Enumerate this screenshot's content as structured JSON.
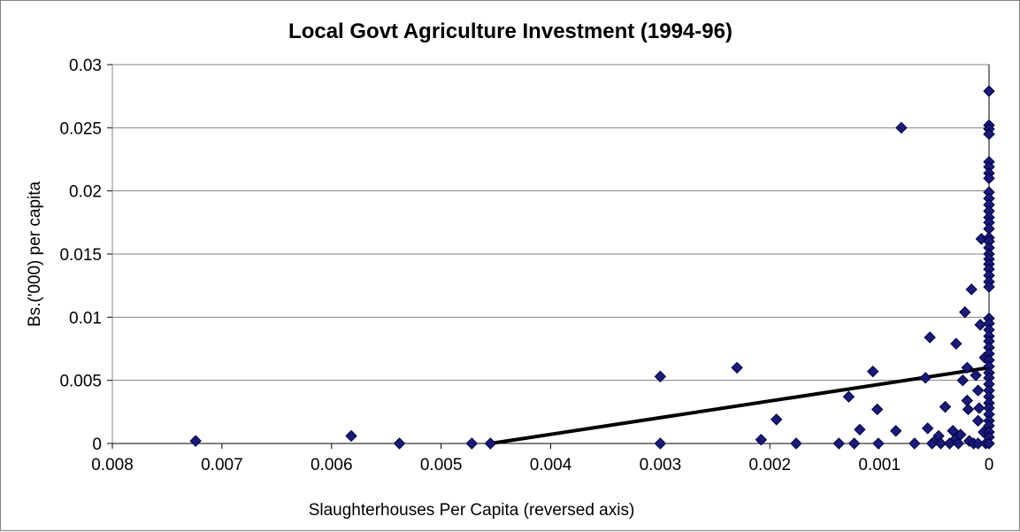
{
  "chart_data": {
    "type": "scatter",
    "title": "Local Govt Agriculture Investment (1994-96)",
    "xlabel": "Slaughterhouses Per Capita (reversed axis)",
    "ylabel": "Bs.('000) per capita",
    "x_reversed": true,
    "xlim": [
      0.008,
      0
    ],
    "ylim": [
      0,
      0.03
    ],
    "x_ticks": [
      "0.008",
      "0.007",
      "0.006",
      "0.005",
      "0.004",
      "0.003",
      "0.002",
      "0.001",
      "0"
    ],
    "y_ticks": [
      "0",
      "0.005",
      "0.01",
      "0.015",
      "0.02",
      "0.025",
      "0.03"
    ],
    "grid": "horizontal",
    "marker_color": "#1a1a7a",
    "trendline": {
      "x": [
        0.00455,
        0
      ],
      "y": [
        0,
        0.006
      ],
      "color": "#000000"
    },
    "points": [
      [
        0.00724,
        0.0002
      ],
      [
        0.00582,
        0.0006
      ],
      [
        0.00538,
        0.0
      ],
      [
        0.00472,
        0.0
      ],
      [
        0.00455,
        0.0
      ],
      [
        0.003,
        0.0053
      ],
      [
        0.003,
        0.0
      ],
      [
        0.0023,
        0.006
      ],
      [
        0.00208,
        0.0003
      ],
      [
        0.00194,
        0.0019
      ],
      [
        0.00176,
        0.0
      ],
      [
        0.00137,
        0.0
      ],
      [
        0.00128,
        0.0037
      ],
      [
        0.00123,
        0.0
      ],
      [
        0.00118,
        0.0011
      ],
      [
        0.00106,
        0.0057
      ],
      [
        0.00102,
        0.0027
      ],
      [
        0.00101,
        0.0
      ],
      [
        0.00085,
        0.001
      ],
      [
        0.0008,
        0.025
      ],
      [
        0.00068,
        0.0
      ],
      [
        0.00058,
        0.0052
      ],
      [
        0.00056,
        0.0012
      ],
      [
        0.00054,
        0.0084
      ],
      [
        0.00052,
        0.0
      ],
      [
        0.00048,
        0.0003
      ],
      [
        0.00046,
        0.0006
      ],
      [
        0.00044,
        0.0
      ],
      [
        0.0004,
        0.0029
      ],
      [
        0.00036,
        0.0
      ],
      [
        0.00033,
        0.001
      ],
      [
        0.0003,
        0.0079
      ],
      [
        0.0003,
        0.0004
      ],
      [
        0.00028,
        0.0
      ],
      [
        0.00026,
        0.0007
      ],
      [
        0.00024,
        0.005
      ],
      [
        0.00022,
        0.0104
      ],
      [
        0.0002,
        0.006
      ],
      [
        0.0002,
        0.0034
      ],
      [
        0.00019,
        0.0027
      ],
      [
        0.00018,
        0.0002
      ],
      [
        0.00016,
        0.0122
      ],
      [
        0.00014,
        0.0
      ],
      [
        0.00012,
        0.0054
      ],
      [
        0.0001,
        0.0018
      ],
      [
        0.0001,
        0.0042
      ],
      [
        0.0001,
        0.0
      ],
      [
        9e-05,
        0.0028
      ],
      [
        8e-05,
        0.0094
      ],
      [
        7e-05,
        0.0162
      ],
      [
        5e-05,
        0.0009
      ],
      [
        4e-05,
        0.0068
      ],
      [
        3e-05,
        0.0
      ],
      [
        0.0,
        0.0279
      ],
      [
        0.0,
        0.0252
      ],
      [
        0.0,
        0.0249
      ],
      [
        0.0,
        0.0245
      ],
      [
        0.0,
        0.0223
      ],
      [
        0.0,
        0.0219
      ],
      [
        0.0,
        0.0214
      ],
      [
        0.0,
        0.021
      ],
      [
        0.0,
        0.0199
      ],
      [
        0.0,
        0.0194
      ],
      [
        0.0,
        0.0189
      ],
      [
        0.0,
        0.0184
      ],
      [
        0.0,
        0.0179
      ],
      [
        0.0,
        0.0175
      ],
      [
        0.0,
        0.017
      ],
      [
        0.0,
        0.0163
      ],
      [
        0.0,
        0.016
      ],
      [
        0.0,
        0.0155
      ],
      [
        0.0,
        0.015
      ],
      [
        0.0,
        0.0146
      ],
      [
        0.0,
        0.0142
      ],
      [
        0.0,
        0.0138
      ],
      [
        0.0,
        0.0133
      ],
      [
        0.0,
        0.0128
      ],
      [
        0.0,
        0.0124
      ],
      [
        0.0,
        0.0099
      ],
      [
        0.0,
        0.0095
      ],
      [
        0.0,
        0.009
      ],
      [
        0.0,
        0.0085
      ],
      [
        0.0,
        0.0081
      ],
      [
        0.0,
        0.0076
      ],
      [
        0.0,
        0.0071
      ],
      [
        0.0,
        0.0066
      ],
      [
        0.0,
        0.0061
      ],
      [
        0.0,
        0.0056
      ],
      [
        0.0,
        0.0052
      ],
      [
        0.0,
        0.0047
      ],
      [
        0.0,
        0.0042
      ],
      [
        0.0,
        0.0037
      ],
      [
        0.0,
        0.0032
      ],
      [
        0.0,
        0.0028
      ],
      [
        0.0,
        0.0023
      ],
      [
        0.0,
        0.0018
      ],
      [
        0.0,
        0.0014
      ],
      [
        0.0,
        0.0009
      ],
      [
        0.0,
        0.0005
      ],
      [
        0.0,
        0.0
      ]
    ]
  }
}
